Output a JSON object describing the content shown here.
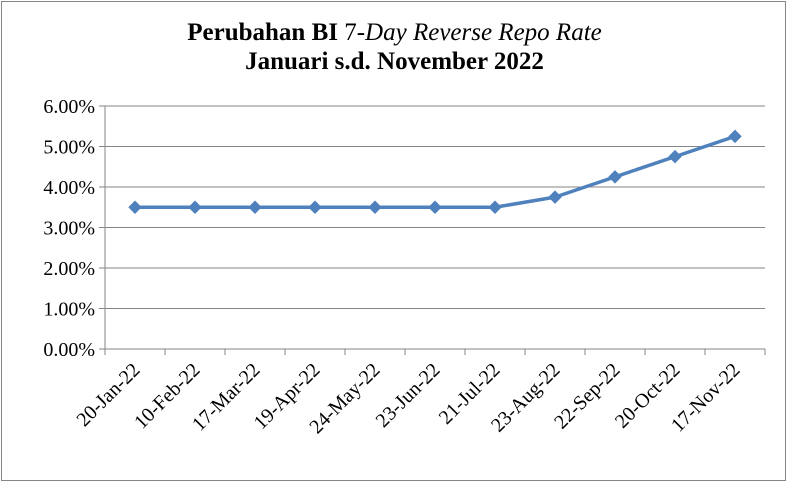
{
  "chart_data": {
    "type": "line",
    "title_line1_prefix": "Perubahan BI ",
    "title_line1_number": "7-",
    "title_line1_italic": "Day Reverse Repo Rate",
    "title_line2": "Januari s.d. November 2022",
    "categories": [
      "20-Jan-22",
      "10-Feb-22",
      "17-Mar-22",
      "19-Apr-22",
      "24-May-22",
      "23-Jun-22",
      "21-Jul-22",
      "23-Aug-22",
      "22-Sep-22",
      "20-Oct-22",
      "17-Nov-22"
    ],
    "series": [
      {
        "values": [
          3.5,
          3.5,
          3.5,
          3.5,
          3.5,
          3.5,
          3.5,
          3.75,
          4.25,
          4.75,
          5.25
        ]
      }
    ],
    "y_ticks": [
      "0.00%",
      "1.00%",
      "2.00%",
      "3.00%",
      "4.00%",
      "5.00%",
      "6.00%"
    ],
    "ylim": [
      0,
      6
    ],
    "grid": true,
    "legend": "none",
    "colors": {
      "line": "#4F81BD",
      "marker": "#4F81BD",
      "grid": "#868686",
      "axis": "#868686"
    }
  }
}
